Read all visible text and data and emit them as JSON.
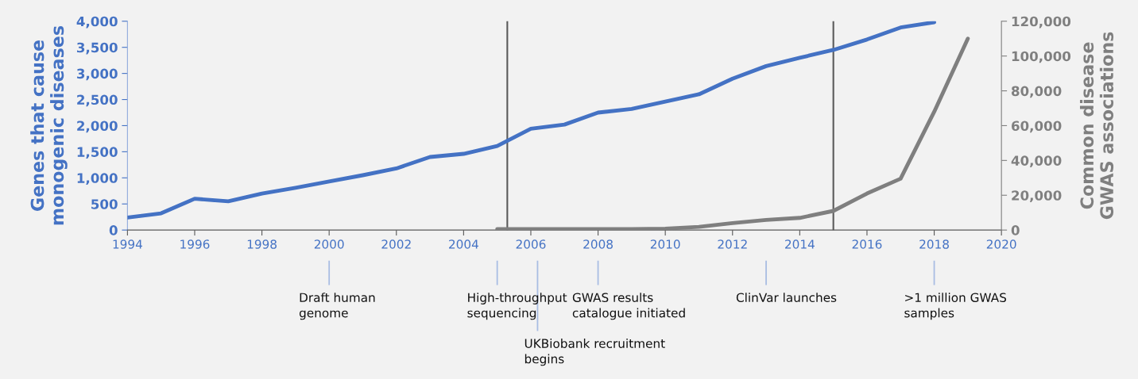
{
  "chart_data": {
    "type": "line",
    "ylabel": "Genes that cause\nmonogenic diseases",
    "y2label": "Common disease\nGWAS associations",
    "series": [
      {
        "name": null,
        "color": "#4472c4",
        "x": [
          1994,
          1995,
          1996,
          1997,
          1998,
          1999,
          2000,
          2001,
          2002,
          2003,
          2004,
          2005,
          2006,
          2007,
          2008,
          2009,
          2010,
          2011,
          2012,
          2013,
          2014,
          2015,
          2016,
          2017,
          2018
        ],
        "values": [
          240,
          320,
          600,
          550,
          700,
          810,
          930,
          1050,
          1180,
          1400,
          1460,
          1610,
          1940,
          2020,
          2250,
          2320,
          2460,
          2600,
          2900,
          3140,
          3300,
          3450,
          3650,
          3880,
          3980
        ]
      },
      {
        "name": null,
        "color": "#7f7f7f",
        "axis": "y2",
        "x": [
          2005,
          2006,
          2007,
          2008,
          2009,
          2010,
          2011,
          2012,
          2013,
          2014,
          2015,
          2016,
          2017,
          2018,
          2019
        ],
        "values": [
          500,
          500,
          500,
          500,
          500,
          800,
          1800,
          4000,
          5800,
          7000,
          11000,
          21000,
          29500,
          68000,
          110000
        ]
      }
    ],
    "xlim": [
      1994,
      2020
    ],
    "xticks": [
      1994,
      1996,
      1998,
      2000,
      2002,
      2004,
      2006,
      2008,
      2010,
      2012,
      2014,
      2016,
      2018,
      2020
    ],
    "ylim": [
      0,
      4000
    ],
    "yticks": [
      {
        "value": 0,
        "label": "0"
      },
      {
        "value": 500,
        "label": "500"
      },
      {
        "value": 1000,
        "label": "1,000"
      },
      {
        "value": 1500,
        "label": "1,500"
      },
      {
        "value": 2000,
        "label": "2,000"
      },
      {
        "value": 2500,
        "label": "2,500"
      },
      {
        "value": 3000,
        "label": "3,000"
      },
      {
        "value": 3500,
        "label": "3,500"
      },
      {
        "value": 4000,
        "label": "4,000"
      }
    ],
    "y2lim": [
      0,
      120000
    ],
    "y2ticks": [
      {
        "value": 0,
        "label": "0"
      },
      {
        "value": 20000,
        "label": "20,000"
      },
      {
        "value": 40000,
        "label": "40,000"
      },
      {
        "value": 60000,
        "label": "60,000"
      },
      {
        "value": 80000,
        "label": "80,000"
      },
      {
        "value": 100000,
        "label": "100,000"
      },
      {
        "value": 120000,
        "label": "120,000"
      }
    ],
    "ref_lines": [
      {
        "axis": "x",
        "value": 2005.3,
        "color": "#595959"
      },
      {
        "axis": "x",
        "value": 2015,
        "color": "#595959"
      },
      {
        "axis": "x",
        "value": 2000,
        "label": "Draft human\ngenome",
        "color": "#a9bde3"
      },
      {
        "axis": "x",
        "value": 2005,
        "label": "High-throughput\nsequencing",
        "color": "#a9bde3"
      },
      {
        "axis": "x",
        "value": 2006.2,
        "label": "UKBiobank recruitment\nbegins",
        "color": "#a9bde3"
      },
      {
        "axis": "x",
        "value": 2008,
        "label": "GWAS results\ncatalogue initiated",
        "color": "#a9bde3"
      },
      {
        "axis": "x",
        "value": 2013,
        "label": "ClinVar launches",
        "color": "#a9bde3"
      },
      {
        "axis": "x",
        "value": 2018,
        "label": ">1 million GWAS\nsamples",
        "color": "#a9bde3"
      }
    ],
    "grid": false,
    "legend": false,
    "marker": "none",
    "line_style": "solid"
  }
}
